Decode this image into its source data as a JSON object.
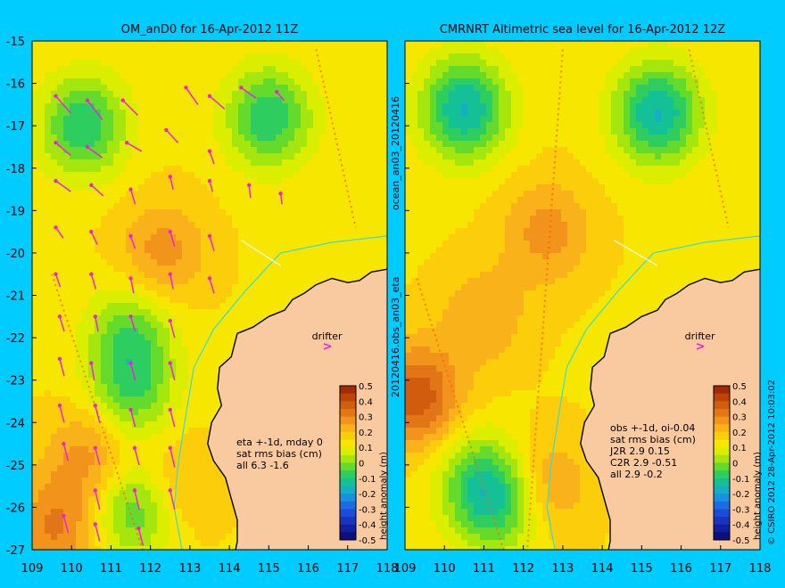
{
  "colors": {
    "background": "#00ccff",
    "land": "#f9c9a0",
    "vector": "#ee22dd",
    "coast_line": "#33dddd",
    "track": "#ff6600"
  },
  "side_labels": {
    "run_id": "ocean_an03_20120416",
    "obs_file": "20120416.obs_an03_eta",
    "credit": "© CSIRO 2012   28-Apr-2012 10:03:02"
  },
  "chart_data": [
    {
      "type": "heatmap",
      "title": "OM_anD0 for 16-Apr-2012 11Z",
      "xlim": [
        109,
        118
      ],
      "ylim": [
        -27,
        -15
      ],
      "x_ticks": [
        109,
        110,
        111,
        112,
        113,
        114,
        115,
        116,
        117,
        118
      ],
      "y_ticks": [
        -15,
        -16,
        -17,
        -18,
        -19,
        -20,
        -21,
        -22,
        -23,
        -24,
        -25,
        -26,
        -27
      ],
      "x_tick_labels": [
        "109",
        "110",
        "111",
        "112",
        "113",
        "114",
        "115",
        "116",
        "117",
        "118"
      ],
      "y_tick_labels": [
        "-15",
        "-16",
        "-17",
        "-18",
        "-19",
        "-20",
        "-21",
        "-22",
        "-23",
        "-24",
        "-25",
        "-26",
        "-27"
      ],
      "colorbar": {
        "label": "height anomaly (m)",
        "ticks": [
          "0.5",
          "0.4",
          "0.3",
          "0.2",
          "0.1",
          "0",
          "-0.1",
          "-0.2",
          "-0.3",
          "-0.4",
          "-0.5"
        ],
        "range": [
          -0.5,
          0.5
        ]
      },
      "annotation_lines": [
        "eta +-1d, mday 0",
        "sat rms bias (cm)",
        "all 6.3 -1.6"
      ],
      "drifter": {
        "label": "drifter",
        "lon": 116.5,
        "lat": -22.0
      },
      "section_line": [
        [
          114.3,
          -19.7
        ],
        [
          115.3,
          -20.3
        ]
      ],
      "field_lows": [
        {
          "lon": 110.3,
          "lat": -17.0,
          "value": -0.12
        },
        {
          "lon": 115.0,
          "lat": -16.8,
          "value": -0.12
        },
        {
          "lon": 111.6,
          "lat": -26.0,
          "value": -0.1
        },
        {
          "lon": 111.5,
          "lat": -23.3,
          "value": -0.06
        },
        {
          "lon": 111.5,
          "lat": -21.9,
          "value": -0.05
        }
      ],
      "field_highs": [
        {
          "lon": 112.3,
          "lat": -20.0,
          "value": 0.25
        },
        {
          "lon": 110.5,
          "lat": -24.8,
          "value": 0.26
        },
        {
          "lon": 112.5,
          "lat": -25.5,
          "value": 0.22
        },
        {
          "lon": 109.6,
          "lat": -26.5,
          "value": 0.28
        }
      ],
      "sat_tracks": [
        [
          [
            116.2,
            -15.2
          ],
          [
            117.2,
            -19.4
          ]
        ],
        [
          [
            109.5,
            -20.5
          ],
          [
            111.8,
            -27.0
          ]
        ]
      ],
      "vectors": [
        [
          109.6,
          -16.3,
          1,
          0.8
        ],
        [
          110.4,
          -16.4,
          1,
          0.9
        ],
        [
          111.3,
          -16.4,
          1,
          0.7
        ],
        [
          112.9,
          -16.1,
          0.8,
          0.8
        ],
        [
          113.5,
          -16.3,
          1,
          0.6
        ],
        [
          114.3,
          -16.1,
          1,
          0.5
        ],
        [
          115.2,
          -16.2,
          0.5,
          0.4
        ],
        [
          109.6,
          -17.4,
          1,
          0.6
        ],
        [
          110.4,
          -17.5,
          1,
          0.5
        ],
        [
          111.4,
          -17.4,
          1,
          0.4
        ],
        [
          112.4,
          -17.1,
          0.8,
          0.6
        ],
        [
          113.5,
          -17.6,
          0.3,
          0.6
        ],
        [
          109.6,
          -18.3,
          1,
          0.5
        ],
        [
          110.5,
          -18.4,
          0.8,
          0.5
        ],
        [
          111.5,
          -18.5,
          0.3,
          0.7
        ],
        [
          112.5,
          -18.2,
          0.2,
          0.6
        ],
        [
          113.5,
          -18.3,
          0.2,
          0.5
        ],
        [
          114.5,
          -18.4,
          0.1,
          0.6
        ],
        [
          115.3,
          -18.6,
          0.1,
          0.5
        ],
        [
          109.6,
          -19.4,
          0.5,
          0.5
        ],
        [
          110.5,
          -19.5,
          0.4,
          0.6
        ],
        [
          111.5,
          -19.6,
          0.3,
          0.6
        ],
        [
          112.5,
          -19.5,
          0.3,
          0.7
        ],
        [
          113.5,
          -19.6,
          0.3,
          0.7
        ],
        [
          109.6,
          -20.5,
          0.3,
          0.6
        ],
        [
          110.5,
          -20.5,
          0.3,
          0.7
        ],
        [
          111.5,
          -20.6,
          0.2,
          0.7
        ],
        [
          112.5,
          -20.5,
          0.2,
          0.7
        ],
        [
          113.5,
          -20.6,
          0.3,
          0.7
        ],
        [
          109.7,
          -21.5,
          0.3,
          0.7
        ],
        [
          110.6,
          -21.5,
          0.2,
          0.7
        ],
        [
          111.5,
          -21.5,
          0.3,
          0.7
        ],
        [
          112.5,
          -21.6,
          0.3,
          0.8
        ],
        [
          109.7,
          -22.5,
          0.3,
          0.8
        ],
        [
          110.5,
          -22.6,
          0.2,
          0.8
        ],
        [
          111.5,
          -22.6,
          0.3,
          0.8
        ],
        [
          112.5,
          -22.6,
          0.3,
          0.8
        ],
        [
          109.7,
          -23.6,
          0.3,
          0.8
        ],
        [
          110.6,
          -23.6,
          0.3,
          0.8
        ],
        [
          111.5,
          -23.7,
          0.3,
          0.8
        ],
        [
          112.5,
          -23.7,
          0.3,
          0.8
        ],
        [
          109.8,
          -24.5,
          0.3,
          0.8
        ],
        [
          110.6,
          -24.6,
          0.3,
          0.8
        ],
        [
          111.6,
          -24.6,
          0.3,
          0.8
        ],
        [
          112.5,
          -24.6,
          0.3,
          0.9
        ],
        [
          110.6,
          -25.6,
          0.3,
          0.9
        ],
        [
          111.6,
          -25.6,
          0.3,
          0.9
        ],
        [
          112.5,
          -25.6,
          0.3,
          0.9
        ],
        [
          109.8,
          -26.2,
          0.3,
          0.8
        ],
        [
          110.6,
          -26.4,
          0.3,
          0.8
        ],
        [
          111.7,
          -26.5,
          0.3,
          0.8
        ]
      ]
    },
    {
      "type": "heatmap",
      "title": "CMRNRT Altimetric sea level  for 16-Apr-2012 12Z",
      "xlim": [
        109,
        118
      ],
      "ylim": [
        -27,
        -15
      ],
      "x_ticks": [
        109,
        110,
        111,
        112,
        113,
        114,
        115,
        116,
        117,
        118
      ],
      "y_ticks": [
        -15,
        -16,
        -17,
        -18,
        -19,
        -20,
        -21,
        -22,
        -23,
        -24,
        -25,
        -26,
        -27
      ],
      "x_tick_labels": [
        "109",
        "110",
        "111",
        "112",
        "113",
        "114",
        "115",
        "116",
        "117",
        "118"
      ],
      "colorbar": {
        "label": "height anomaly (m)",
        "ticks": [
          "0.5",
          "0.4",
          "0.3",
          "0.2",
          "0.1",
          "0",
          "-0.1",
          "-0.2",
          "-0.3",
          "-0.4",
          "-0.5"
        ],
        "range": [
          -0.5,
          0.5
        ]
      },
      "annotation_lines": [
        "obs +-1d, oi-0.04",
        "sat rms bias (cm)",
        "J2R   2.9 0.15",
        "C2R   2.9 -0.51",
        "all 2.9 -0.2"
      ],
      "drifter": {
        "label": "drifter",
        "lon": 116.5,
        "lat": -22.0
      },
      "section_line": [
        [
          114.3,
          -19.7
        ],
        [
          115.4,
          -20.3
        ]
      ],
      "field_lows": [
        {
          "lon": 110.5,
          "lat": -16.6,
          "value": -0.18
        },
        {
          "lon": 115.4,
          "lat": -16.7,
          "value": -0.18
        },
        {
          "lon": 110.9,
          "lat": -25.4,
          "value": -0.08
        },
        {
          "lon": 111.5,
          "lat": -26.0,
          "value": -0.05
        }
      ],
      "field_highs": [
        {
          "lon": 109.3,
          "lat": -23.4,
          "value": 0.36
        },
        {
          "lon": 112.6,
          "lat": -19.5,
          "value": 0.25
        },
        {
          "lon": 112.5,
          "lat": -25.5,
          "value": 0.25
        },
        {
          "lon": 111.0,
          "lat": -21.5,
          "value": 0.22
        }
      ],
      "sat_tracks": [
        [
          [
            116.2,
            -15.2
          ],
          [
            117.2,
            -19.4
          ]
        ],
        [
          [
            113.0,
            -15.2
          ],
          [
            112.1,
            -27.0
          ]
        ],
        [
          [
            109.3,
            -20.6
          ],
          [
            111.5,
            -27.0
          ]
        ]
      ]
    }
  ]
}
